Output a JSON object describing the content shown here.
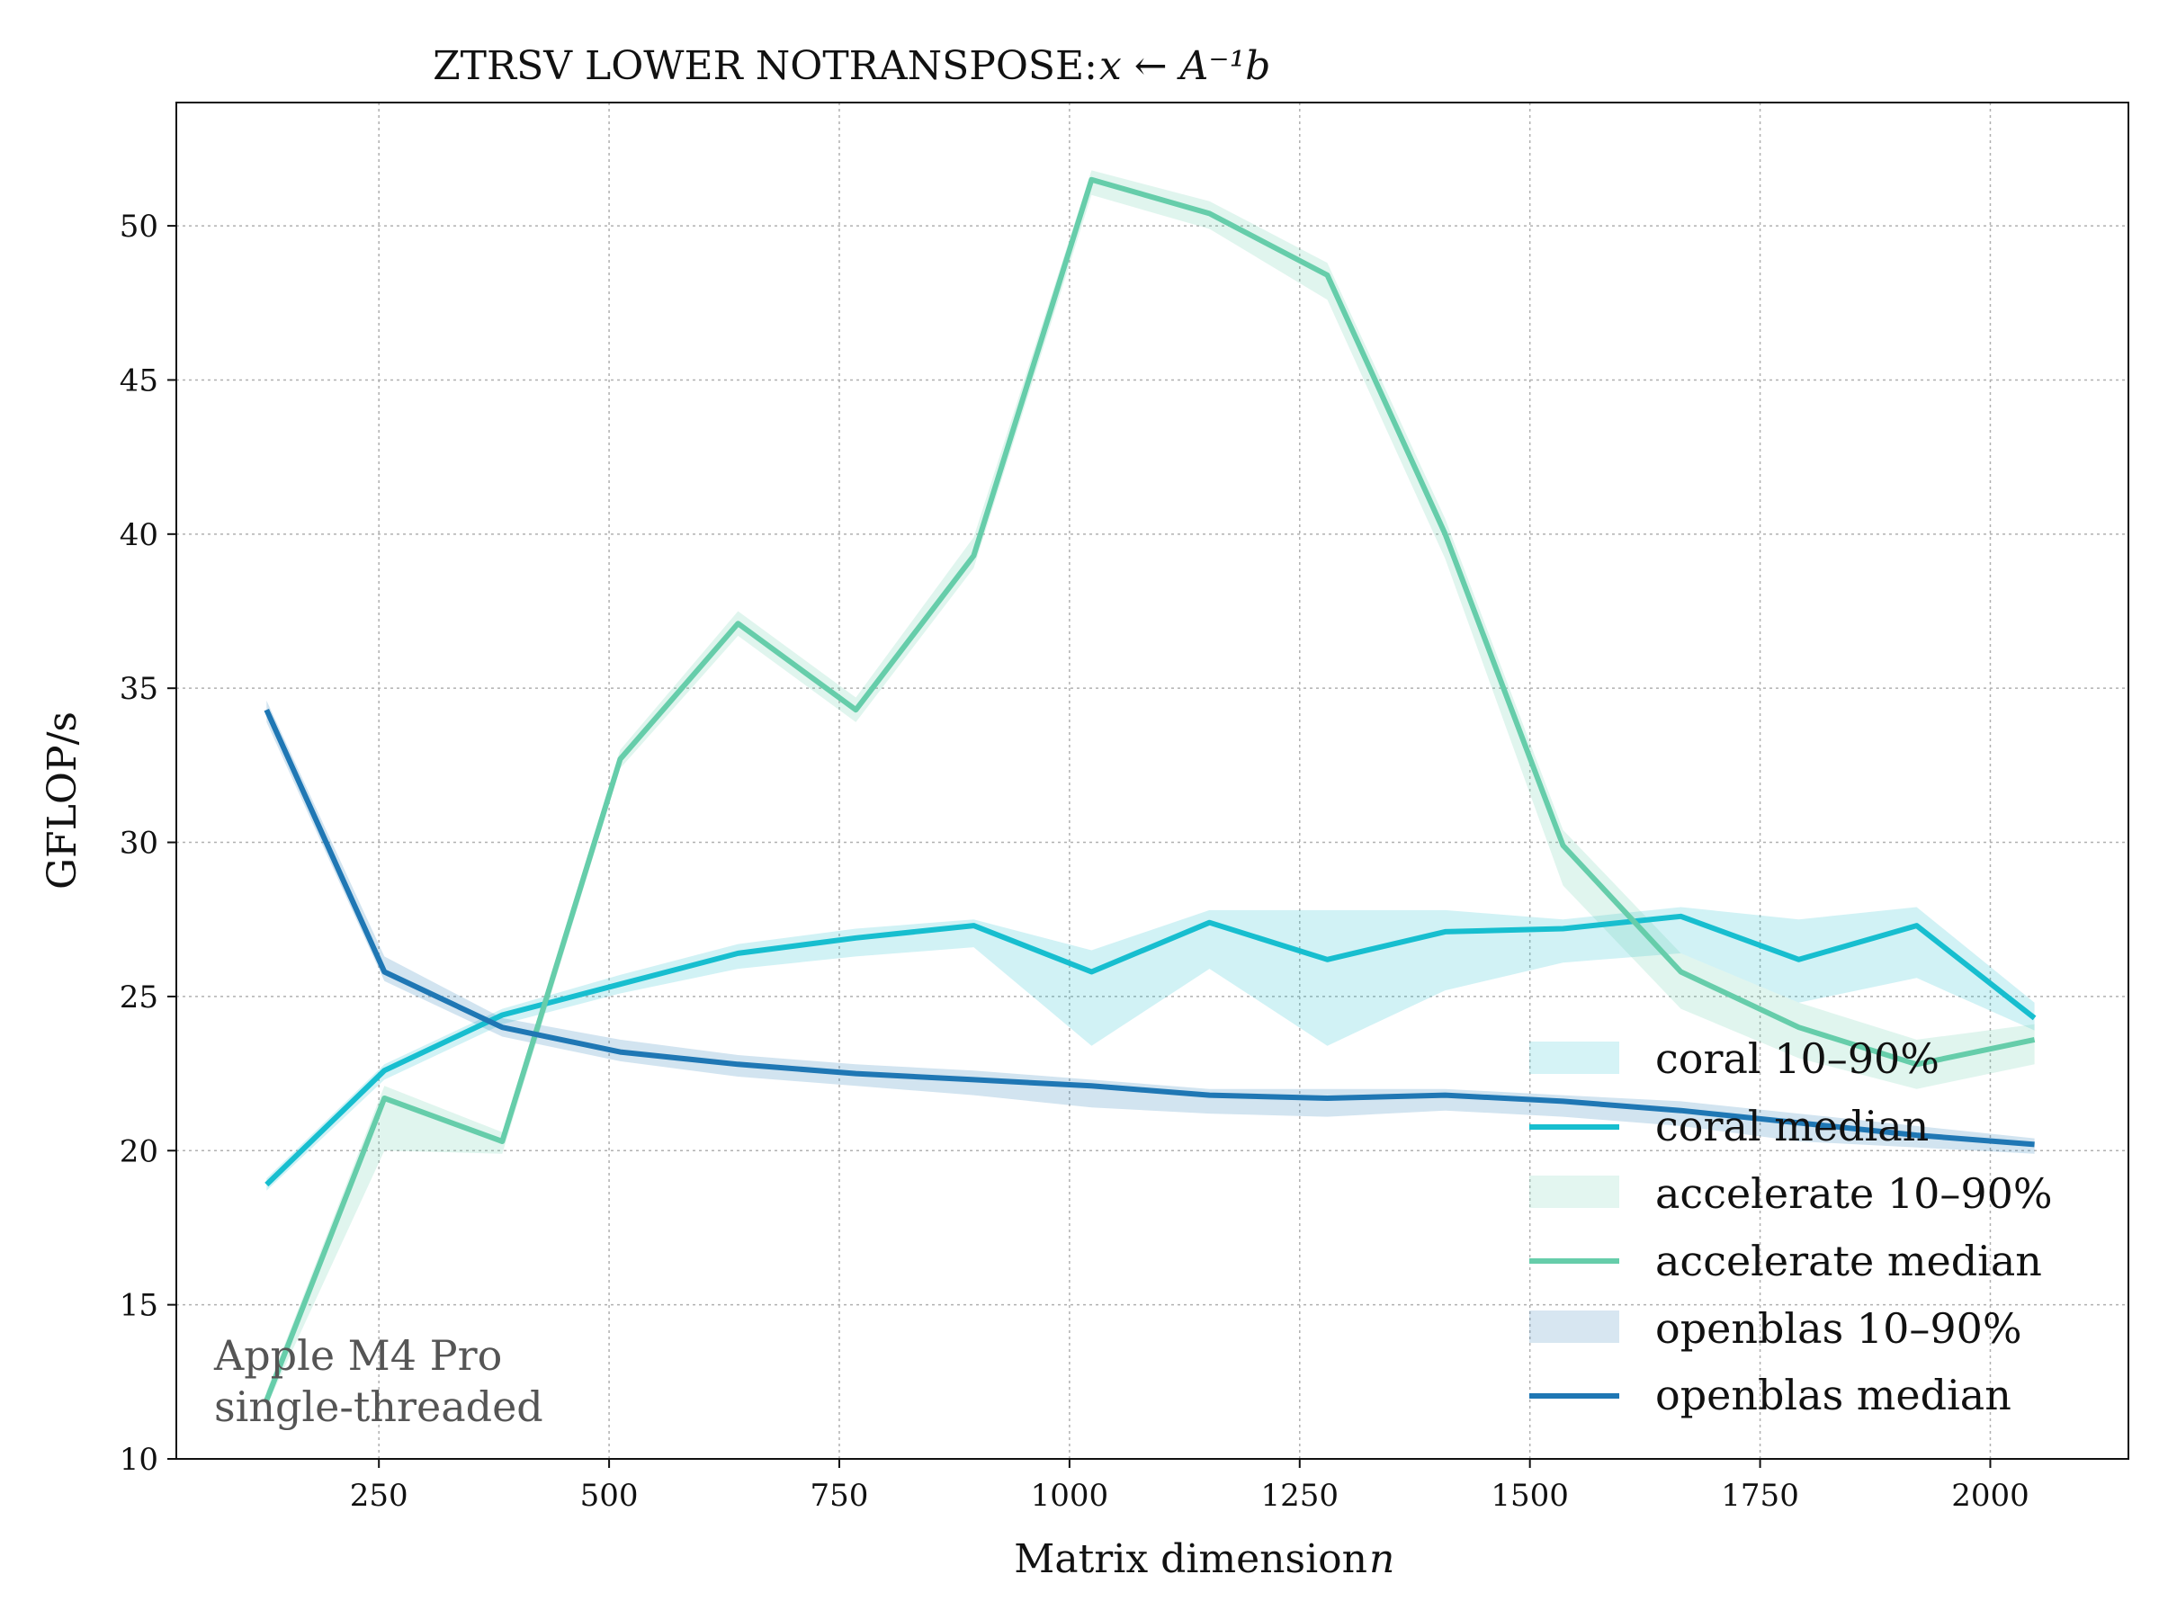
{
  "chart_data": {
    "type": "line",
    "title": "ZTRSV LOWER NOTRANSPOSE: ",
    "title_math": "x ← A⁻¹b",
    "xlabel": "Matrix dimension ",
    "xlabel_math": "n",
    "ylabel": "GFLOP/s",
    "xlim": [
      30,
      2150
    ],
    "ylim": [
      10,
      54
    ],
    "xticks": [
      250,
      500,
      750,
      1000,
      1250,
      1500,
      1750,
      2000
    ],
    "yticks": [
      10,
      15,
      20,
      25,
      30,
      35,
      40,
      45,
      50
    ],
    "grid": true,
    "legend_position": "lower-right",
    "annotation": [
      "Apple M4 Pro",
      "single-threaded"
    ],
    "x": [
      128,
      256,
      384,
      512,
      640,
      768,
      896,
      1024,
      1152,
      1280,
      1408,
      1536,
      1664,
      1792,
      1920,
      2048
    ],
    "series": [
      {
        "name": "coral",
        "color": "#17becf",
        "band_label": "coral 10–90%",
        "median_label": "coral median",
        "median": [
          18.9,
          22.6,
          24.4,
          25.4,
          26.4,
          26.9,
          27.3,
          25.8,
          27.4,
          26.2,
          27.1,
          27.2,
          27.6,
          26.2,
          27.3,
          24.3
        ],
        "p10": [
          18.7,
          22.3,
          24.1,
          25.1,
          25.9,
          26.3,
          26.6,
          23.4,
          25.9,
          23.4,
          25.2,
          26.1,
          26.4,
          24.8,
          25.6,
          23.9
        ],
        "p90": [
          19.1,
          22.8,
          24.6,
          25.7,
          26.7,
          27.2,
          27.5,
          26.5,
          27.8,
          27.8,
          27.8,
          27.5,
          27.9,
          27.5,
          27.9,
          24.8
        ]
      },
      {
        "name": "accelerate",
        "color": "#66cdaa",
        "band_label": "accelerate 10–90%",
        "median_label": "accelerate median",
        "median": [
          11.9,
          21.7,
          20.3,
          32.7,
          37.1,
          34.3,
          39.3,
          51.5,
          50.4,
          48.4,
          40.0,
          29.9,
          25.8,
          24.0,
          22.8,
          23.6
        ],
        "p10": [
          11.7,
          20.0,
          19.9,
          32.4,
          36.7,
          33.9,
          38.9,
          51.0,
          49.9,
          47.6,
          39.2,
          28.6,
          24.6,
          23.0,
          22.0,
          22.8
        ],
        "p90": [
          12.2,
          22.1,
          20.6,
          33.0,
          37.5,
          34.7,
          39.9,
          51.8,
          50.8,
          48.8,
          40.5,
          30.4,
          26.4,
          24.8,
          23.6,
          24.1
        ]
      },
      {
        "name": "openblas",
        "color": "#1f77b4",
        "band_label": "openblas 10–90%",
        "median_label": "openblas median",
        "median": [
          34.3,
          25.8,
          24.0,
          23.2,
          22.8,
          22.5,
          22.3,
          22.1,
          21.8,
          21.7,
          21.8,
          21.6,
          21.3,
          20.9,
          20.5,
          20.2
        ],
        "p10": [
          33.9,
          25.5,
          23.7,
          22.9,
          22.4,
          22.1,
          21.8,
          21.4,
          21.2,
          21.1,
          21.3,
          21.1,
          20.8,
          20.3,
          20.1,
          19.9
        ],
        "p90": [
          34.6,
          26.3,
          24.3,
          23.6,
          23.1,
          22.8,
          22.6,
          22.3,
          22.0,
          22.0,
          22.0,
          21.8,
          21.6,
          21.2,
          20.8,
          20.4
        ]
      }
    ]
  }
}
